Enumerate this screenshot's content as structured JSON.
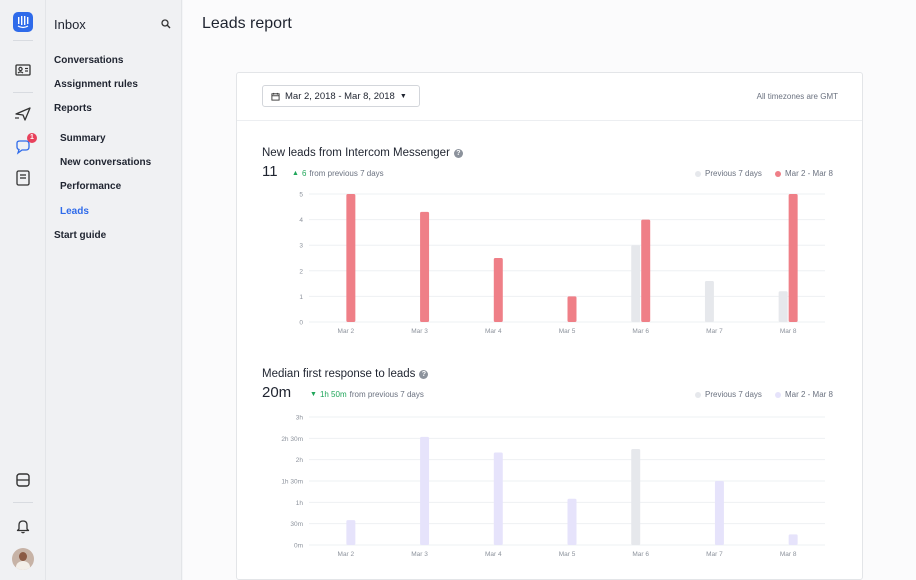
{
  "rail": {
    "icons": [
      "intercom-logo-icon",
      "contacts-icon",
      "outbound-icon",
      "messages-icon",
      "articles-icon",
      "apps-icon",
      "notifications-icon"
    ],
    "messages_badge": "1"
  },
  "nav": {
    "title": "Inbox",
    "items": {
      "conversations": "Conversations",
      "assignment_rules": "Assignment rules",
      "reports": "Reports",
      "summary": "Summary",
      "new_conversations": "New conversations",
      "performance": "Performance",
      "leads": "Leads",
      "start_guide": "Start guide"
    }
  },
  "main": {
    "title": "Leads report",
    "date_range": "Mar 2, 2018 - Mar 8, 2018",
    "timezone_note": "All timezones are GMT"
  },
  "section1": {
    "title": "New leads from Intercom Messenger",
    "value": "11",
    "delta_value": "6",
    "delta_text": "from previous 7 days",
    "legend_prev": "Previous 7 days",
    "legend_curr": "Mar 2 - Mar 8"
  },
  "section2": {
    "title": "Median first response to leads",
    "value": "20m",
    "delta_value": "1h 50m",
    "delta_text": "from previous 7 days",
    "legend_prev": "Previous 7 days",
    "legend_curr": "Mar 2 - Mar 8"
  },
  "colors": {
    "accent": "#2f6bea",
    "leads_current": "#ef7f87",
    "previous": "#e6e8ec",
    "response_current": "#e6e3fb",
    "positive": "#20a65a"
  },
  "chart_data": [
    {
      "type": "bar",
      "title": "New leads from Intercom Messenger",
      "categories": [
        "Mar 2",
        "Mar 3",
        "Mar 4",
        "Mar 5",
        "Mar 6",
        "Mar 7",
        "Mar 8"
      ],
      "yticks": [
        "0",
        "1",
        "2",
        "3",
        "4",
        "5"
      ],
      "ylim": [
        0,
        5
      ],
      "grid": true,
      "legend": "top-right",
      "series": [
        {
          "name": "Previous 7 days",
          "values": [
            0,
            0,
            0,
            0,
            3,
            1.6,
            1.2
          ]
        },
        {
          "name": "Mar 2 - Mar 8",
          "values": [
            5,
            4.3,
            2.5,
            1,
            4,
            0,
            5
          ]
        }
      ]
    },
    {
      "type": "bar",
      "title": "Median first response to leads",
      "categories": [
        "Mar 2",
        "Mar 3",
        "Mar 4",
        "Mar 5",
        "Mar 6",
        "Mar 7",
        "Mar 8"
      ],
      "yticks": [
        "0m",
        "30m",
        "1h",
        "1h 30m",
        "2h",
        "2h 30m",
        "3h"
      ],
      "ylim": [
        0,
        180
      ],
      "grid": true,
      "legend": "top-right",
      "series": [
        {
          "name": "Previous 7 days",
          "values": [
            0,
            0,
            0,
            0,
            135,
            0,
            0
          ]
        },
        {
          "name": "Mar 2 - Mar 8",
          "values": [
            35,
            152,
            130,
            65,
            0,
            90,
            15
          ]
        }
      ]
    }
  ]
}
